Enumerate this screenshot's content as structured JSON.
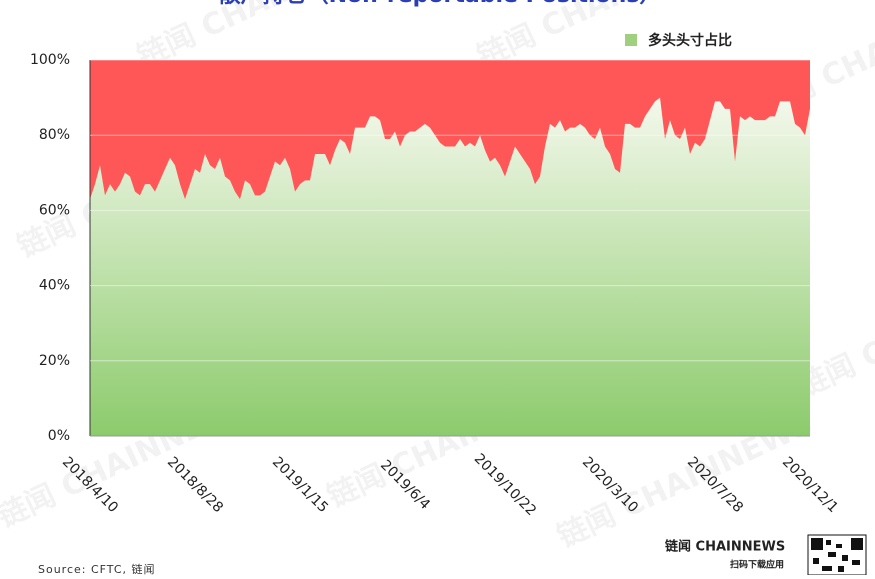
{
  "chart_data": {
    "type": "area",
    "title": "散户持仓（Non-reportable Positions）",
    "source": "Source: CFTC, 链闻",
    "watermark": "链闻 CHAINNEWS",
    "brand": "链闻 CHAINNEWS",
    "brand_sub": "扫码下载应用",
    "categories": [
      "2018/4/10",
      null,
      null,
      null,
      null,
      null,
      null,
      null,
      null,
      null,
      null,
      null,
      null,
      null,
      null,
      null,
      null,
      null,
      null,
      null,
      null,
      "2018/8/28",
      null,
      null,
      null,
      null,
      null,
      null,
      null,
      null,
      null,
      null,
      null,
      null,
      null,
      null,
      null,
      null,
      null,
      null,
      null,
      null,
      "2019/1/15",
      null,
      null,
      null,
      null,
      null,
      null,
      null,
      null,
      null,
      null,
      null,
      null,
      null,
      null,
      null,
      null,
      null,
      null,
      null,
      null,
      "2019/6/4",
      null,
      null,
      null,
      null,
      null,
      null,
      null,
      null,
      null,
      null,
      null,
      null,
      null,
      null,
      null,
      null,
      null,
      null,
      null,
      "2019/10/22",
      null,
      null,
      null,
      null,
      null,
      null,
      null,
      null,
      null,
      null,
      null,
      null,
      null,
      null,
      null,
      null,
      null,
      null,
      null,
      null,
      "2020/3/10",
      null,
      null,
      null,
      null,
      null,
      null,
      null,
      null,
      null,
      null,
      null,
      null,
      null,
      null,
      null,
      null,
      null,
      null,
      null,
      null,
      "2020/7/28",
      null,
      null,
      null,
      null,
      null,
      null,
      null,
      null,
      null,
      null,
      null,
      null,
      null,
      null,
      null,
      null,
      null,
      null,
      "2020/12/1"
    ],
    "series": [
      {
        "name": "多头头寸占比",
        "color": "#9fcf7f",
        "top_color": "#f4f8ec",
        "bottom_color": "#8ccb6c",
        "values": [
          63,
          67,
          72,
          64,
          67,
          65,
          67,
          70,
          69,
          65,
          64,
          67,
          67,
          65,
          68,
          71,
          74,
          72,
          67,
          63,
          67,
          71,
          70,
          75,
          72,
          71,
          74,
          69,
          68,
          65,
          63,
          68,
          67,
          64,
          64,
          65,
          69,
          73,
          72,
          74,
          71,
          65,
          67,
          68,
          68,
          75,
          75,
          75,
          72,
          76,
          79,
          78,
          75,
          82,
          82,
          82,
          85,
          85,
          84,
          79,
          79,
          81,
          77,
          80,
          81,
          81,
          82,
          83,
          82,
          80,
          78,
          77,
          77,
          77,
          79,
          77,
          78,
          77,
          80,
          76,
          73,
          74,
          72,
          69,
          73,
          77,
          75,
          73,
          71,
          67,
          69,
          77,
          83,
          82,
          84,
          81,
          82,
          82,
          83,
          82,
          80,
          79,
          82,
          77,
          75,
          71,
          70,
          83,
          83,
          82,
          82,
          85,
          87,
          89,
          90,
          79,
          84,
          80,
          79,
          82,
          75,
          78,
          77,
          79,
          84,
          89,
          89,
          87,
          87,
          73,
          85,
          84,
          85,
          84,
          84,
          84,
          85,
          85,
          89,
          89,
          89,
          83,
          82,
          80,
          87
        ]
      }
    ],
    "remainder_color": "#ff5757",
    "ylim": [
      0,
      100
    ],
    "yticks": [
      {
        "value": 0,
        "label": "0%"
      },
      {
        "value": 20,
        "label": "20%"
      },
      {
        "value": 40,
        "label": "40%"
      },
      {
        "value": 60,
        "label": "60%"
      },
      {
        "value": 80,
        "label": "80%"
      },
      {
        "value": 100,
        "label": "100%"
      }
    ],
    "grid": true,
    "legend": "top-right"
  }
}
